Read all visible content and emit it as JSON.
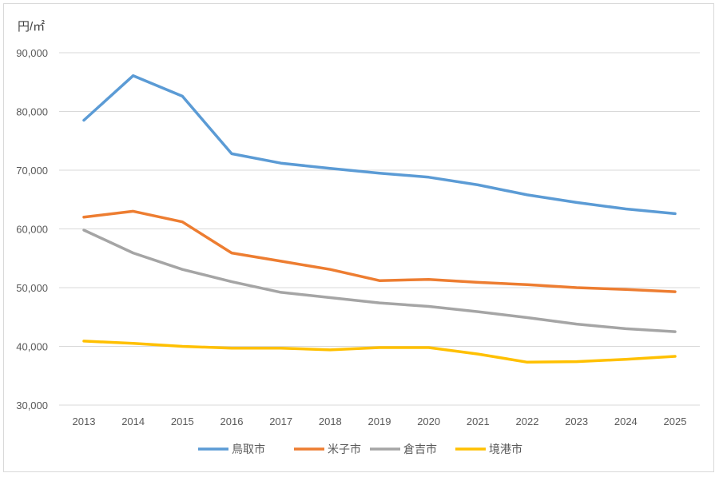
{
  "chart_data": {
    "type": "line",
    "unit_label": "円/㎡",
    "x": [
      "2013",
      "2014",
      "2015",
      "2016",
      "2017",
      "2018",
      "2019",
      "2020",
      "2021",
      "2022",
      "2023",
      "2024",
      "2025"
    ],
    "ylim": [
      30000,
      90000
    ],
    "yticks": [
      30000,
      40000,
      50000,
      60000,
      70000,
      80000,
      90000
    ],
    "ytick_labels": [
      "30,000",
      "40,000",
      "50,000",
      "60,000",
      "70,000",
      "80,000",
      "90,000"
    ],
    "grid": true,
    "legend_position": "bottom",
    "series": [
      {
        "name": "鳥取市",
        "color": "#5B9BD5",
        "values": [
          78500,
          86100,
          82600,
          72800,
          71200,
          70300,
          69500,
          68800,
          67500,
          65800,
          64500,
          63400,
          62600
        ]
      },
      {
        "name": "米子市",
        "color": "#ED7D31",
        "values": [
          62000,
          63000,
          61200,
          55900,
          54500,
          53100,
          51200,
          51400,
          50900,
          50500,
          50000,
          49700,
          49300
        ]
      },
      {
        "name": "倉吉市",
        "color": "#A5A5A5",
        "values": [
          59800,
          55900,
          53100,
          51000,
          49200,
          48300,
          47400,
          46800,
          45900,
          44900,
          43800,
          43000,
          42500
        ]
      },
      {
        "name": "境港市",
        "color": "#FFC000",
        "values": [
          40900,
          40500,
          40000,
          39700,
          39700,
          39400,
          39800,
          39800,
          38700,
          37300,
          37400,
          37800,
          38300
        ]
      }
    ]
  }
}
